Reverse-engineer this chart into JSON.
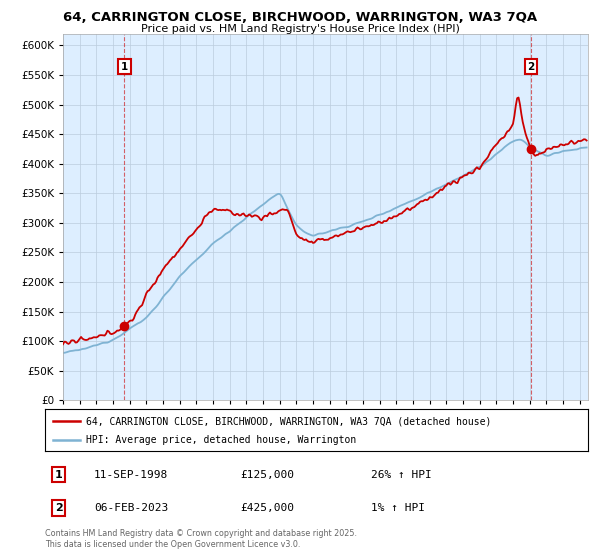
{
  "title_line1": "64, CARRINGTON CLOSE, BIRCHWOOD, WARRINGTON, WA3 7QA",
  "title_line2": "Price paid vs. HM Land Registry's House Price Index (HPI)",
  "ylim": [
    0,
    620000
  ],
  "yticks": [
    0,
    50000,
    100000,
    150000,
    200000,
    250000,
    300000,
    350000,
    400000,
    450000,
    500000,
    550000,
    600000
  ],
  "ytick_labels": [
    "£0",
    "£50K",
    "£100K",
    "£150K",
    "£200K",
    "£250K",
    "£300K",
    "£350K",
    "£400K",
    "£450K",
    "£500K",
    "£550K",
    "£600K"
  ],
  "xlim_start": 1995.0,
  "xlim_end": 2026.5,
  "sale1_year": 1998.69,
  "sale1_price": 125000,
  "sale2_year": 2023.09,
  "sale2_price": 425000,
  "red_color": "#cc0000",
  "blue_color": "#7fb3d3",
  "chart_bg": "#ddeeff",
  "legend_label1": "64, CARRINGTON CLOSE, BIRCHWOOD, WARRINGTON, WA3 7QA (detached house)",
  "legend_label2": "HPI: Average price, detached house, Warrington",
  "table_row1": [
    "1",
    "11-SEP-1998",
    "£125,000",
    "26% ↑ HPI"
  ],
  "table_row2": [
    "2",
    "06-FEB-2023",
    "£425,000",
    "1% ↑ HPI"
  ],
  "footnote": "Contains HM Land Registry data © Crown copyright and database right 2025.\nThis data is licensed under the Open Government Licence v3.0.",
  "bg_color": "#ffffff",
  "grid_color": "#bbccdd"
}
